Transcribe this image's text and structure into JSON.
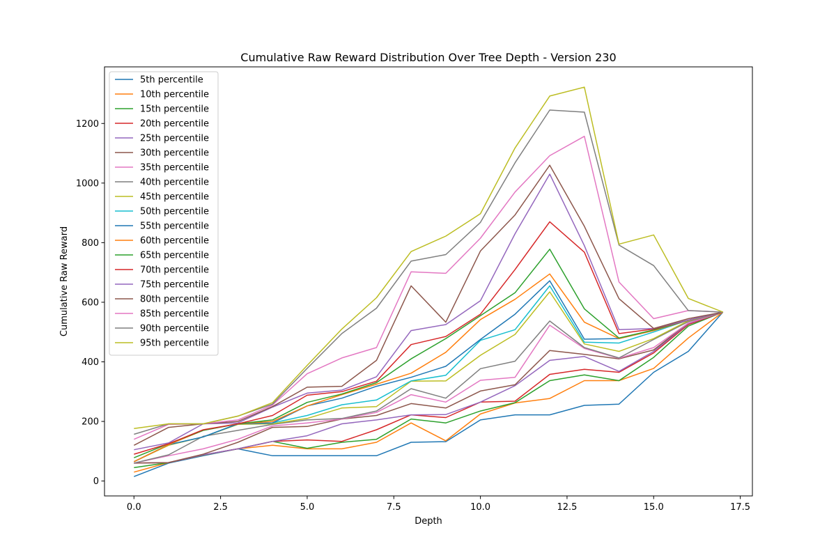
{
  "chart_data": {
    "type": "line",
    "title": "Cumulative Raw Reward Distribution Over Tree Depth - Version 230",
    "xlabel": "Depth",
    "ylabel": "Cumulative Raw Reward",
    "xlim": [
      -0.85,
      17.85
    ],
    "ylim": [
      -50,
      1390
    ],
    "xticks": [
      0.0,
      2.5,
      5.0,
      7.5,
      10.0,
      12.5,
      15.0,
      17.5
    ],
    "xtick_labels": [
      "0.0",
      "2.5",
      "5.0",
      "7.5",
      "10.0",
      "12.5",
      "15.0",
      "17.5"
    ],
    "yticks": [
      0,
      200,
      400,
      600,
      800,
      1000,
      1200
    ],
    "ytick_labels": [
      "0",
      "200",
      "400",
      "600",
      "800",
      "1000",
      "1200"
    ],
    "grid": false,
    "legend_position": "top-left",
    "x": [
      0,
      1,
      2,
      3,
      4,
      5,
      6,
      7,
      8,
      9,
      10,
      11,
      12,
      13,
      14,
      15,
      16,
      17
    ],
    "series": [
      {
        "name": "5th percentile",
        "color": "#1f77b4",
        "values": [
          15,
          60,
          85,
          108,
          85,
          85,
          85,
          85,
          130,
          132,
          205,
          222,
          222,
          254,
          258,
          365,
          435,
          567
        ]
      },
      {
        "name": "10th percentile",
        "color": "#ff7f0e",
        "values": [
          30,
          62,
          87,
          108,
          120,
          108,
          108,
          130,
          195,
          135,
          225,
          262,
          277,
          337,
          337,
          378,
          480,
          567
        ]
      },
      {
        "name": "15th percentile",
        "color": "#2ca02c",
        "values": [
          45,
          62,
          87,
          108,
          133,
          110,
          130,
          140,
          208,
          195,
          235,
          263,
          337,
          356,
          337,
          415,
          520,
          567
        ]
      },
      {
        "name": "20th percentile",
        "color": "#d62728",
        "values": [
          60,
          62,
          88,
          108,
          133,
          138,
          133,
          172,
          222,
          213,
          265,
          268,
          358,
          375,
          365,
          430,
          525,
          567
        ]
      },
      {
        "name": "25th percentile",
        "color": "#9467bd",
        "values": [
          60,
          62,
          88,
          108,
          133,
          152,
          192,
          205,
          222,
          223,
          265,
          320,
          405,
          418,
          368,
          435,
          528,
          567
        ]
      },
      {
        "name": "30th percentile",
        "color": "#8c564b",
        "values": [
          60,
          62,
          90,
          130,
          180,
          183,
          208,
          220,
          260,
          245,
          302,
          323,
          438,
          425,
          410,
          440,
          530,
          567
        ]
      },
      {
        "name": "35th percentile",
        "color": "#e377c2",
        "values": [
          60,
          85,
          108,
          140,
          185,
          195,
          208,
          230,
          290,
          265,
          338,
          348,
          523,
          445,
          412,
          448,
          530,
          567
        ]
      },
      {
        "name": "40th percentile",
        "color": "#7f7f7f",
        "values": [
          60,
          88,
          150,
          170,
          190,
          205,
          210,
          235,
          310,
          278,
          377,
          402,
          537,
          448,
          413,
          475,
          535,
          567
        ]
      },
      {
        "name": "45th percentile",
        "color": "#bcbd22",
        "values": [
          65,
          120,
          148,
          190,
          192,
          210,
          245,
          250,
          335,
          336,
          422,
          492,
          635,
          460,
          435,
          478,
          538,
          567
        ]
      },
      {
        "name": "50th percentile",
        "color": "#17becf",
        "values": [
          65,
          122,
          148,
          192,
          195,
          220,
          256,
          272,
          336,
          355,
          472,
          508,
          655,
          466,
          463,
          500,
          540,
          567
        ]
      },
      {
        "name": "55th percentile",
        "color": "#1f77b4",
        "values": [
          65,
          122,
          148,
          192,
          195,
          252,
          278,
          318,
          348,
          385,
          475,
          560,
          672,
          476,
          478,
          505,
          540,
          567
        ]
      },
      {
        "name": "60th percentile",
        "color": "#ff7f0e",
        "values": [
          65,
          122,
          170,
          192,
          200,
          252,
          290,
          325,
          362,
          432,
          542,
          610,
          695,
          533,
          478,
          505,
          540,
          567
        ]
      },
      {
        "name": "65th percentile",
        "color": "#2ca02c",
        "values": [
          78,
          125,
          170,
          192,
          205,
          264,
          292,
          330,
          410,
          478,
          555,
          632,
          778,
          578,
          480,
          507,
          540,
          567
        ]
      },
      {
        "name": "70th percentile",
        "color": "#d62728",
        "values": [
          90,
          125,
          172,
          192,
          220,
          288,
          300,
          335,
          458,
          485,
          560,
          710,
          870,
          768,
          495,
          510,
          540,
          567
        ]
      },
      {
        "name": "75th percentile",
        "color": "#9467bd",
        "values": [
          105,
          128,
          192,
          195,
          248,
          295,
          305,
          350,
          505,
          525,
          605,
          830,
          1030,
          790,
          508,
          512,
          540,
          567
        ]
      },
      {
        "name": "80th percentile",
        "color": "#8c564b",
        "values": [
          120,
          180,
          192,
          200,
          250,
          315,
          318,
          405,
          655,
          533,
          772,
          893,
          1060,
          855,
          612,
          512,
          545,
          567
        ]
      },
      {
        "name": "85th percentile",
        "color": "#e377c2",
        "values": [
          140,
          190,
          192,
          205,
          255,
          360,
          413,
          448,
          702,
          697,
          815,
          970,
          1092,
          1157,
          668,
          545,
          572,
          567
        ]
      },
      {
        "name": "90th percentile",
        "color": "#7f7f7f",
        "values": [
          157,
          192,
          192,
          218,
          258,
          378,
          495,
          580,
          738,
          760,
          868,
          1068,
          1245,
          1238,
          792,
          723,
          572,
          567
        ]
      },
      {
        "name": "95th percentile",
        "color": "#bcbd22",
        "values": [
          176,
          192,
          192,
          218,
          263,
          388,
          510,
          615,
          770,
          822,
          897,
          1118,
          1292,
          1322,
          795,
          826,
          613,
          567
        ]
      }
    ]
  }
}
